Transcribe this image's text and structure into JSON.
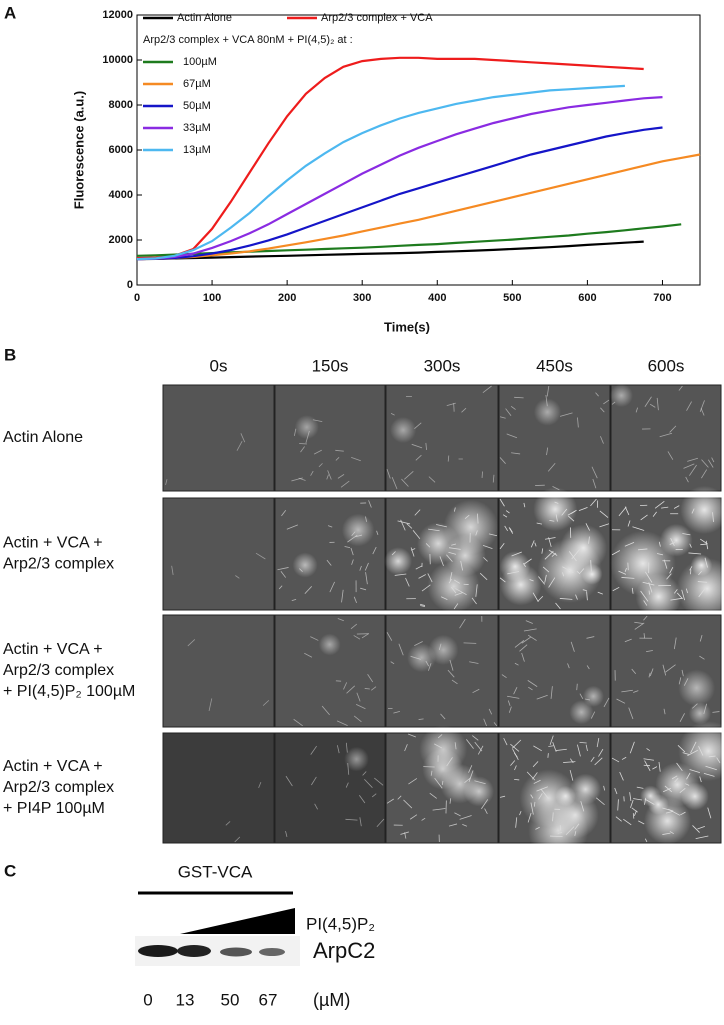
{
  "panel_labels": [
    "A",
    "B",
    "C"
  ],
  "chart_data": {
    "type": "line",
    "y_label": "Fluorescence (a.u.)",
    "x_label": "Time(s)",
    "legend_heading": "Arp2/3 complex + VCA 80nM  +  PI(4,5)₂  at :",
    "xlim": [
      0,
      750
    ],
    "xticks": [
      0,
      100,
      200,
      300,
      400,
      500,
      600,
      700
    ],
    "ylim": [
      0,
      12000
    ],
    "yticks": [
      0,
      2000,
      4000,
      6000,
      8000,
      10000,
      12000
    ],
    "x": [
      0,
      25,
      50,
      75,
      100,
      125,
      150,
      175,
      200,
      225,
      250,
      275,
      300,
      325,
      350,
      375,
      400,
      425,
      450,
      475,
      500,
      525,
      550,
      575,
      600,
      625,
      650,
      675,
      700,
      725,
      750
    ],
    "series": [
      {
        "name": "Actin Alone",
        "color": "#000000",
        "values": [
          1150,
          1160,
          1180,
          1200,
          1220,
          1240,
          1260,
          1280,
          1300,
          1320,
          1340,
          1360,
          1380,
          1400,
          1420,
          1440,
          1470,
          1500,
          1530,
          1560,
          1600,
          1640,
          1680,
          1730,
          1780,
          1830,
          1880,
          1930,
          null,
          null,
          null
        ]
      },
      {
        "name": "Arp2/3 complex  + VCA",
        "color": "#ee1c1c",
        "values": [
          1200,
          1220,
          1300,
          1600,
          2500,
          3700,
          5000,
          6300,
          7500,
          8500,
          9200,
          9700,
          9950,
          10050,
          10100,
          10100,
          10050,
          10050,
          10050,
          10000,
          9950,
          9900,
          9850,
          9800,
          9750,
          9700,
          9650,
          9600,
          null,
          null,
          null
        ]
      },
      {
        "name": "100µM",
        "color": "#1e7b1e",
        "values": [
          1300,
          1320,
          1350,
          1380,
          1420,
          1450,
          1480,
          1510,
          1540,
          1570,
          1600,
          1630,
          1660,
          1700,
          1740,
          1780,
          1820,
          1870,
          1920,
          1970,
          2020,
          2080,
          2140,
          2200,
          2280,
          2350,
          2430,
          2520,
          2600,
          2700,
          null
        ]
      },
      {
        "name": "67µM",
        "color": "#f58a23",
        "values": [
          1150,
          1170,
          1200,
          1250,
          1320,
          1400,
          1500,
          1620,
          1760,
          1900,
          2050,
          2200,
          2380,
          2550,
          2730,
          2900,
          3100,
          3300,
          3500,
          3700,
          3900,
          4100,
          4300,
          4500,
          4700,
          4900,
          5100,
          5300,
          5500,
          5650,
          5800
        ]
      },
      {
        "name": "50µM",
        "color": "#1515c8",
        "values": [
          1150,
          1170,
          1200,
          1280,
          1400,
          1550,
          1750,
          1980,
          2250,
          2550,
          2850,
          3150,
          3450,
          3750,
          4050,
          4300,
          4550,
          4800,
          5050,
          5300,
          5550,
          5800,
          6000,
          6200,
          6400,
          6600,
          6750,
          6900,
          7000,
          null,
          null
        ]
      },
      {
        "name": "33µM",
        "color": "#8a2be2",
        "values": [
          1150,
          1170,
          1250,
          1400,
          1650,
          1950,
          2300,
          2700,
          3150,
          3600,
          4050,
          4500,
          4950,
          5350,
          5750,
          6100,
          6400,
          6700,
          6950,
          7200,
          7400,
          7600,
          7750,
          7900,
          8000,
          8100,
          8200,
          8300,
          8350,
          null,
          null
        ]
      },
      {
        "name": "13µM",
        "color": "#4db8f0",
        "values": [
          1150,
          1180,
          1300,
          1550,
          1950,
          2550,
          3200,
          3950,
          4650,
          5300,
          5850,
          6350,
          6750,
          7100,
          7400,
          7650,
          7850,
          8050,
          8200,
          8350,
          8450,
          8550,
          8650,
          8700,
          8750,
          8800,
          8850,
          null,
          null,
          null,
          null
        ]
      }
    ]
  },
  "panel_b": {
    "columns": [
      "0s",
      "150s",
      "300s",
      "450s",
      "600s"
    ],
    "rows": [
      {
        "lines": [
          "Actin Alone"
        ]
      },
      {
        "lines": [
          "Actin + VCA +",
          "Arp2/3 complex"
        ]
      },
      {
        "lines": [
          "Actin  + VCA +",
          "Arp2/3 complex",
          "+ PI(4,5)P₂ 100µM"
        ]
      },
      {
        "lines": [
          "Actin + VCA +",
          "Arp2/3 complex",
          "+ PI4P 100µM"
        ]
      }
    ]
  },
  "panel_c": {
    "group": "GST-VCA",
    "gradient": "PI(4,5)P₂",
    "band": "ArpC2",
    "lanes": [
      "0",
      "13",
      "50",
      "67"
    ],
    "unit": "(µM)"
  }
}
